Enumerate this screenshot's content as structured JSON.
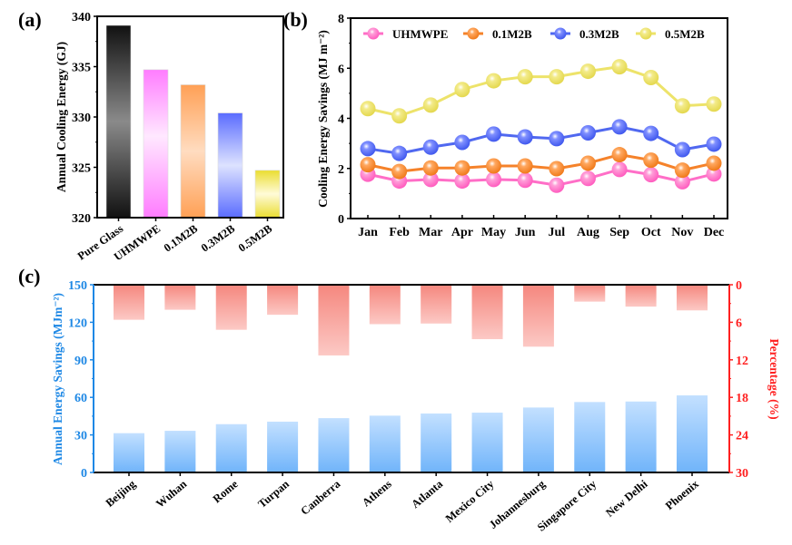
{
  "panels": {
    "a": "(a)",
    "b": "(b)",
    "c": "(c)"
  },
  "chart_data": [
    {
      "id": "a",
      "type": "bar",
      "title": "",
      "xlabel": "",
      "ylabel": "Annual Cooling Energy (GJ)",
      "ylim": [
        320,
        340
      ],
      "yticks": [
        320,
        325,
        330,
        335,
        340
      ],
      "categories": [
        "Pure Glass",
        "UHMWPE",
        "0.1M2B",
        "0.3M2B",
        "0.5M2B"
      ],
      "values": [
        339.1,
        334.7,
        333.2,
        330.4,
        324.7
      ],
      "colors": [
        "#000000",
        "#ff66ff",
        "#ff9a50",
        "#4d66ff",
        "#e6e030"
      ],
      "grid": false
    },
    {
      "id": "b",
      "type": "line",
      "title": "",
      "xlabel": "",
      "ylabel": "Cooling Energy Savings (MJ m⁻²)",
      "ylim": [
        0,
        8
      ],
      "yticks": [
        0,
        2,
        4,
        6,
        8
      ],
      "categories": [
        "Jan",
        "Feb",
        "Mar",
        "Apr",
        "May",
        "Jun",
        "Jul",
        "Aug",
        "Sep",
        "Oct",
        "Nov",
        "Dec"
      ],
      "legend_position": "top",
      "grid": false,
      "series": [
        {
          "name": "UHMWPE",
          "color": "#ff6ec7",
          "values": [
            1.77,
            1.5,
            1.56,
            1.5,
            1.56,
            1.53,
            1.33,
            1.6,
            1.96,
            1.75,
            1.47,
            1.78
          ]
        },
        {
          "name": "0.1M2B",
          "color": "#f5822a",
          "values": [
            2.15,
            1.88,
            2.02,
            2.02,
            2.1,
            2.1,
            1.99,
            2.21,
            2.55,
            2.33,
            1.93,
            2.21
          ]
        },
        {
          "name": "0.3M2B",
          "color": "#5068f0",
          "values": [
            2.79,
            2.6,
            2.85,
            3.04,
            3.37,
            3.26,
            3.19,
            3.42,
            3.66,
            3.4,
            2.75,
            2.97
          ]
        },
        {
          "name": "0.5M2B",
          "color": "#ede36a",
          "values": [
            4.39,
            4.1,
            4.53,
            5.15,
            5.5,
            5.66,
            5.66,
            5.88,
            6.06,
            5.63,
            4.5,
            4.57
          ]
        }
      ]
    },
    {
      "id": "c",
      "type": "bar",
      "title": "",
      "xlabel": "",
      "ylabel": "Annual  Energy Savings (MJm⁻²)",
      "ylabel_right": "Percentage (%)",
      "ylim": [
        0,
        150
      ],
      "yticks": [
        0,
        30,
        60,
        90,
        120,
        150
      ],
      "ylim_right": [
        0,
        30
      ],
      "yticks_right": [
        0,
        6,
        12,
        18,
        24,
        30
      ],
      "right_axis_inverted": true,
      "left_color": "#1e88e5",
      "right_color": "#ff2020",
      "grid": false,
      "categories": [
        "Beijing",
        "Wuhan",
        "Rome",
        "Turpan",
        "Canberra",
        "Athens",
        "Atlanta",
        "Mexico City",
        "Johannesburg",
        "Singapore City",
        "New Delhi",
        "Phoenix"
      ],
      "series": [
        {
          "name": "Annual Energy Savings",
          "axis": "left",
          "color": "#7cbcff",
          "values": [
            31.4,
            33.3,
            38.6,
            40.6,
            43.4,
            45.4,
            47.1,
            47.8,
            51.9,
            56.3,
            56.7,
            61.6
          ]
        },
        {
          "name": "Percentage",
          "axis": "right",
          "color": "#f78a80",
          "values": [
            5.6,
            4.0,
            7.2,
            4.8,
            11.3,
            6.3,
            6.2,
            8.7,
            9.9,
            2.7,
            3.5,
            4.1
          ]
        }
      ]
    }
  ]
}
